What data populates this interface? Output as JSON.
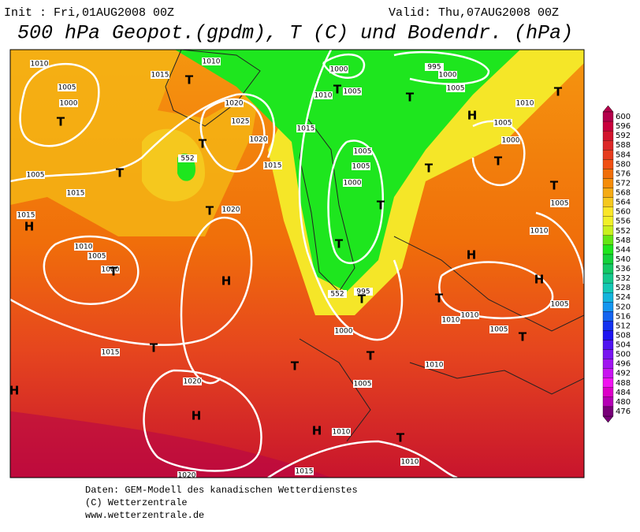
{
  "header": {
    "init": "Init : Fri,01AUG2008 00Z",
    "valid": "Valid: Thu,07AUG2008 00Z",
    "title": "500 hPa Geopot.(gpdm), T (C) und Bodendr. (hPa)"
  },
  "footer": {
    "lines": [
      "Daten: GEM-Modell des kanadischen Wetterdienstes",
      "(C) Wetterzentrale",
      "www.wetterzentrale.de"
    ]
  },
  "colorbar": {
    "levels": [
      600,
      596,
      592,
      588,
      584,
      580,
      576,
      572,
      568,
      564,
      560,
      556,
      552,
      548,
      544,
      540,
      536,
      532,
      528,
      524,
      520,
      516,
      512,
      508,
      504,
      500,
      496,
      492,
      488,
      484,
      480,
      476
    ],
    "colors": [
      "#b4004b",
      "#c8003c",
      "#d2142d",
      "#dc2828",
      "#e63c1e",
      "#f05014",
      "#f06e0a",
      "#f58c0a",
      "#f5aa14",
      "#f5c81e",
      "#fae628",
      "#f0f028",
      "#c8f01e",
      "#64e614",
      "#1ee61e",
      "#14d23c",
      "#14c864",
      "#14c88c",
      "#14c8b4",
      "#14b4dc",
      "#1496f0",
      "#1464f0",
      "#1432f0",
      "#1e14f0",
      "#5014f0",
      "#7814f0",
      "#a014f0",
      "#c814f0",
      "#f014f0",
      "#dc00c8",
      "#b400b4",
      "#780078"
    ]
  },
  "map_labels": [
    "1010",
    "1005",
    "1000",
    "1015",
    "1010",
    "1020",
    "1025",
    "1020",
    "1015",
    "1015",
    "1005",
    "1015",
    "1015",
    "1010",
    "1005",
    "1000",
    "1020",
    "1015",
    "1020",
    "1020",
    "1015",
    "1010",
    "1005",
    "1000",
    "995",
    "1010",
    "1010",
    "1010",
    "1005",
    "1005",
    "1010",
    "1005",
    "1000",
    "1005",
    "1010",
    "1005",
    "1000",
    "995",
    "1000",
    "1005",
    "1010",
    "1005",
    "1005",
    "1000",
    "1010",
    "552",
    "552",
    "H",
    "H",
    "H",
    "H",
    "H",
    "H",
    "H",
    "H",
    "T",
    "T",
    "T",
    "T",
    "T",
    "T",
    "T",
    "T",
    "T",
    "T",
    "T",
    "T",
    "T",
    "T",
    "T",
    "T",
    "T",
    "T",
    "T",
    "T",
    "T"
  ]
}
